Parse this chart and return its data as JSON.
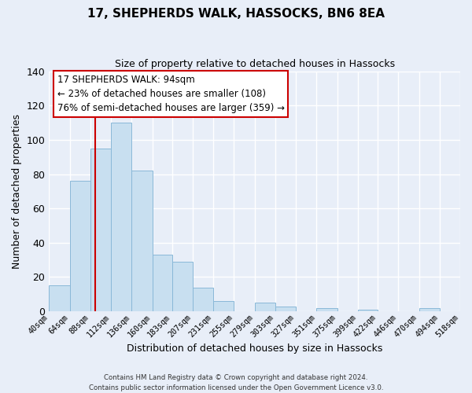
{
  "title": "17, SHEPHERDS WALK, HASSOCKS, BN6 8EA",
  "subtitle": "Size of property relative to detached houses in Hassocks",
  "xlabel": "Distribution of detached houses by size in Hassocks",
  "ylabel": "Number of detached properties",
  "bar_color": "#c8dff0",
  "bar_edge_color": "#8ab8d8",
  "bin_edges": [
    40,
    64,
    88,
    112,
    136,
    160,
    183,
    207,
    231,
    255,
    279,
    303,
    327,
    351,
    375,
    399,
    422,
    446,
    470,
    494,
    518
  ],
  "bin_labels": [
    "40sqm",
    "64sqm",
    "88sqm",
    "112sqm",
    "136sqm",
    "160sqm",
    "183sqm",
    "207sqm",
    "231sqm",
    "255sqm",
    "279sqm",
    "303sqm",
    "327sqm",
    "351sqm",
    "375sqm",
    "399sqm",
    "422sqm",
    "446sqm",
    "470sqm",
    "494sqm",
    "518sqm"
  ],
  "bar_heights": [
    15,
    76,
    95,
    110,
    82,
    33,
    29,
    14,
    6,
    0,
    5,
    3,
    0,
    2,
    0,
    1,
    0,
    0,
    2,
    0
  ],
  "ylim": [
    0,
    140
  ],
  "yticks": [
    0,
    20,
    40,
    60,
    80,
    100,
    120,
    140
  ],
  "vline_x": 94,
  "vline_color": "#cc0000",
  "annotation_line1": "17 SHEPHERDS WALK: 94sqm",
  "annotation_line2": "← 23% of detached houses are smaller (108)",
  "annotation_line3": "76% of semi-detached houses are larger (359) →",
  "annotation_box_color": "#ffffff",
  "annotation_box_edge": "#cc0000",
  "footer_line1": "Contains HM Land Registry data © Crown copyright and database right 2024.",
  "footer_line2": "Contains public sector information licensed under the Open Government Licence v3.0.",
  "background_color": "#e8eef8",
  "grid_color": "#ffffff"
}
